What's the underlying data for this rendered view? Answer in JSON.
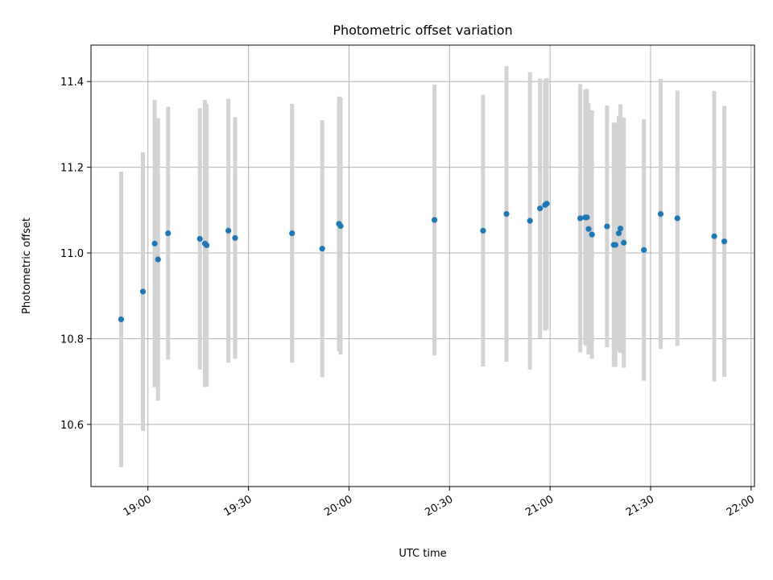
{
  "chart_data": {
    "type": "scatter",
    "title": "Photometric offset variation",
    "xlabel": "UTC time",
    "ylabel": "Photometric offset",
    "xlim": [
      "18:43",
      "22:01"
    ],
    "ylim": [
      10.455,
      11.485
    ],
    "grid": true,
    "x_ticks": [
      "19:00",
      "19:30",
      "20:00",
      "20:30",
      "21:00",
      "21:30",
      "22:00"
    ],
    "y_ticks": [
      "10.6",
      "10.8",
      "11.0",
      "11.2",
      "11.4"
    ],
    "colors": {
      "points": "#1f77b4",
      "errorbars": "#d3d3d3",
      "grid": "#b0b0b0",
      "axes": "#000000"
    },
    "points": [
      {
        "x": "18:52",
        "y": 10.845,
        "yerr": 0.345
      },
      {
        "x": "18:58.5",
        "y": 10.91,
        "yerr": 0.325
      },
      {
        "x": "19:02",
        "y": 11.022,
        "yerr": 0.335
      },
      {
        "x": "19:03",
        "y": 10.985,
        "yerr": 0.33
      },
      {
        "x": "19:06",
        "y": 11.046,
        "yerr": 0.295
      },
      {
        "x": "19:15.5",
        "y": 11.033,
        "yerr": 0.305
      },
      {
        "x": "19:17",
        "y": 11.022,
        "yerr": 0.335
      },
      {
        "x": "19:17.5",
        "y": 11.018,
        "yerr": 0.33
      },
      {
        "x": "19:24",
        "y": 11.052,
        "yerr": 0.308
      },
      {
        "x": "19:26",
        "y": 11.035,
        "yerr": 0.282
      },
      {
        "x": "19:43",
        "y": 11.046,
        "yerr": 0.302
      },
      {
        "x": "19:52",
        "y": 11.01,
        "yerr": 0.3
      },
      {
        "x": "19:57",
        "y": 11.068,
        "yerr": 0.297
      },
      {
        "x": "19:57.5",
        "y": 11.063,
        "yerr": 0.3
      },
      {
        "x": "20:25.5",
        "y": 11.077,
        "yerr": 0.316
      },
      {
        "x": "20:40",
        "y": 11.052,
        "yerr": 0.317
      },
      {
        "x": "20:47",
        "y": 11.091,
        "yerr": 0.345
      },
      {
        "x": "20:54",
        "y": 11.075,
        "yerr": 0.347
      },
      {
        "x": "20:57",
        "y": 11.104,
        "yerr": 0.303
      },
      {
        "x": "20:58.5",
        "y": 11.112,
        "yerr": 0.293
      },
      {
        "x": "20:59",
        "y": 11.115,
        "yerr": 0.293
      },
      {
        "x": "21:09",
        "y": 11.081,
        "yerr": 0.313
      },
      {
        "x": "21:10.5",
        "y": 11.083,
        "yerr": 0.298
      },
      {
        "x": "21:11",
        "y": 11.083,
        "yerr": 0.3
      },
      {
        "x": "21:11.5",
        "y": 11.056,
        "yerr": 0.293
      },
      {
        "x": "21:12.5",
        "y": 11.043,
        "yerr": 0.29
      },
      {
        "x": "21:17",
        "y": 11.062,
        "yerr": 0.282
      },
      {
        "x": "21:19",
        "y": 11.019,
        "yerr": 0.285
      },
      {
        "x": "21:19.5",
        "y": 11.019,
        "yerr": 0.285
      },
      {
        "x": "21:20.5",
        "y": 11.046,
        "yerr": 0.274
      },
      {
        "x": "21:21",
        "y": 11.057,
        "yerr": 0.29
      },
      {
        "x": "21:22",
        "y": 11.024,
        "yerr": 0.292
      },
      {
        "x": "21:28",
        "y": 11.007,
        "yerr": 0.305
      },
      {
        "x": "21:33",
        "y": 11.091,
        "yerr": 0.315
      },
      {
        "x": "21:38",
        "y": 11.081,
        "yerr": 0.298
      },
      {
        "x": "21:49",
        "y": 11.039,
        "yerr": 0.339
      },
      {
        "x": "21:52",
        "y": 11.027,
        "yerr": 0.316
      }
    ]
  }
}
